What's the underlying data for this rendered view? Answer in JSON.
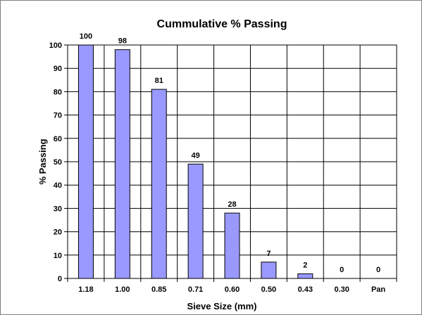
{
  "chart_data": {
    "type": "bar",
    "title": "Cummulative % Passing",
    "xlabel": "Sieve Size (mm)",
    "ylabel": "% Passing",
    "categories": [
      "1.18",
      "1.00",
      "0.85",
      "0.71",
      "0.60",
      "0.50",
      "0.43",
      "0.30",
      "Pan"
    ],
    "values": [
      100,
      98,
      81,
      49,
      28,
      7,
      2,
      0,
      0
    ],
    "data_labels": [
      "100",
      "98",
      "81",
      "49",
      "28",
      "7",
      "2",
      "0",
      "0"
    ],
    "ylim": [
      0,
      100
    ],
    "yticks": [
      "0",
      "10",
      "20",
      "30",
      "40",
      "50",
      "60",
      "70",
      "80",
      "90",
      "100"
    ],
    "grid": "both",
    "legend": "none",
    "colors": {
      "bar_fill": "#9999ff",
      "bar_stroke": "#000000",
      "grid": "#000000"
    }
  }
}
